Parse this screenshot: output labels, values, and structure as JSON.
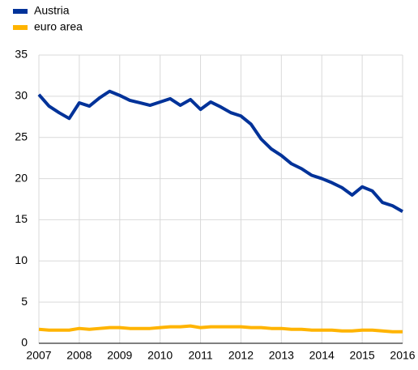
{
  "chart_data": {
    "type": "line",
    "x": [
      2007,
      2007.25,
      2007.5,
      2007.75,
      2008,
      2008.25,
      2008.5,
      2008.75,
      2009,
      2009.25,
      2009.5,
      2009.75,
      2010,
      2010.25,
      2010.5,
      2010.75,
      2011,
      2011.25,
      2011.5,
      2011.75,
      2012,
      2012.25,
      2012.5,
      2012.75,
      2013,
      2013.25,
      2013.5,
      2013.75,
      2014,
      2014.25,
      2014.5,
      2014.75,
      2015,
      2015.25,
      2015.5,
      2015.75,
      2016
    ],
    "series": [
      {
        "name": "Austria",
        "color": "#003299",
        "values": [
          30.2,
          28.8,
          28.0,
          27.3,
          29.2,
          28.8,
          29.8,
          30.6,
          30.1,
          29.5,
          29.2,
          28.9,
          29.3,
          29.7,
          28.9,
          29.6,
          28.4,
          29.3,
          28.7,
          28.0,
          27.6,
          26.6,
          24.8,
          23.6,
          22.8,
          21.8,
          21.2,
          20.4,
          20.0,
          19.5,
          18.9,
          18.0,
          19.0,
          18.5,
          17.1,
          16.7,
          16.0
        ]
      },
      {
        "name": "euro area",
        "color": "#ffb400",
        "values": [
          1.7,
          1.6,
          1.6,
          1.6,
          1.8,
          1.7,
          1.8,
          1.9,
          1.9,
          1.8,
          1.8,
          1.8,
          1.9,
          2.0,
          2.0,
          2.1,
          1.9,
          2.0,
          2.0,
          2.0,
          2.0,
          1.9,
          1.9,
          1.8,
          1.8,
          1.7,
          1.7,
          1.6,
          1.6,
          1.6,
          1.5,
          1.5,
          1.6,
          1.6,
          1.5,
          1.4,
          1.4
        ]
      }
    ],
    "xlim": [
      2007,
      2016
    ],
    "xticks": [
      2007,
      2008,
      2009,
      2010,
      2011,
      2012,
      2013,
      2014,
      2015,
      2016
    ],
    "ylim": [
      0,
      35
    ],
    "yticks": [
      0,
      5,
      10,
      15,
      20,
      25,
      30,
      35
    ],
    "grid": true,
    "legend": "top-left"
  }
}
